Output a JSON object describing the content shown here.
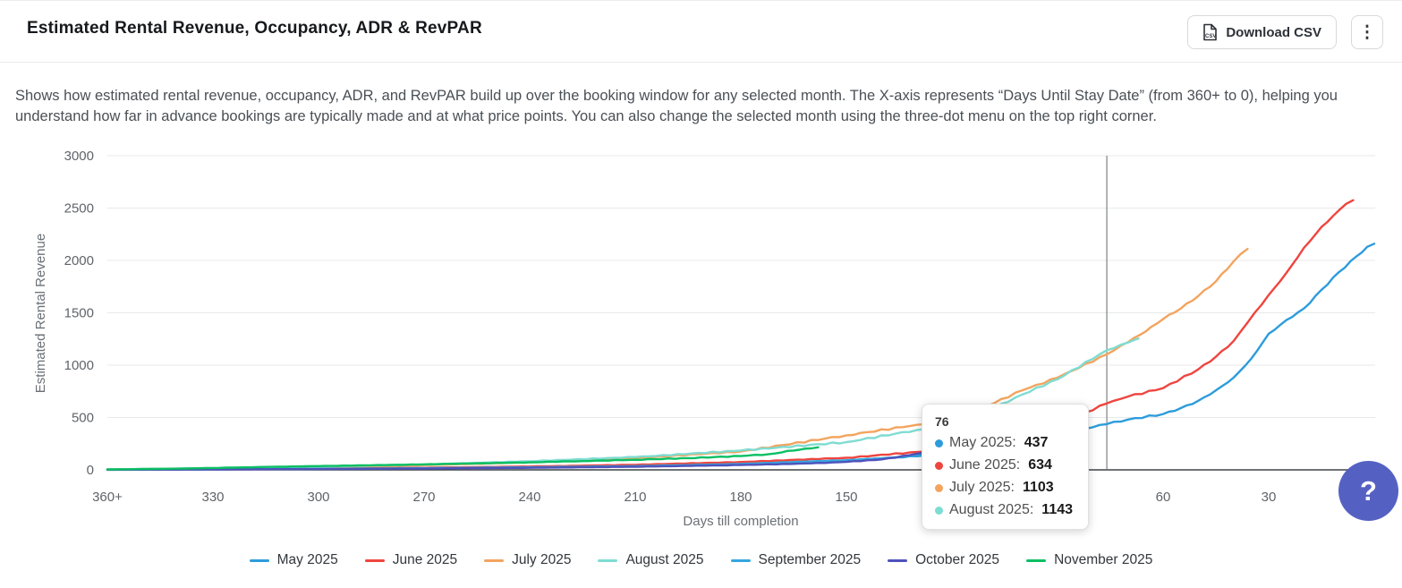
{
  "header": {
    "title": "Estimated Rental Revenue, Occupancy, ADR & RevPAR",
    "download_label": "Download CSV",
    "menu_icon": "⋮"
  },
  "description": "Shows how estimated rental revenue, occupancy, ADR, and RevPAR build up over the booking window for any selected month. The X-axis represents “Days Until Stay Date” (from 360+ to 0), helping you understand how far in advance bookings are typically made and at what price points. You can also change the selected month using the three-dot menu on the top right corner.",
  "tooltip": {
    "header": "76",
    "rows": [
      {
        "label": "May 2025",
        "value": "437",
        "color": "#2d9cdb"
      },
      {
        "label": "June 2025",
        "value": "634",
        "color": "#ee453f"
      },
      {
        "label": "July 2025",
        "value": "1103",
        "color": "#f3a45e"
      },
      {
        "label": "August 2025",
        "value": "1143",
        "color": "#7fdcd2"
      }
    ]
  },
  "help_button": {
    "label": "?",
    "color": "#5561c2"
  },
  "chart_data": {
    "type": "line",
    "xlabel": "Days till completion",
    "ylabel": "Estimated Rental Revenue",
    "x_ticks": [
      "360+",
      "330",
      "300",
      "270",
      "240",
      "210",
      "180",
      "150",
      "120",
      "90",
      "60",
      "30"
    ],
    "x_tick_days": [
      360,
      330,
      300,
      270,
      240,
      210,
      180,
      150,
      120,
      90,
      60,
      30
    ],
    "y_ticks": [
      0,
      500,
      1000,
      1500,
      2000,
      2500,
      3000
    ],
    "ylim": [
      0,
      3000
    ],
    "xlim_days": [
      360,
      0
    ],
    "grid": "horizontal",
    "legend_position": "bottom",
    "crosshair_day": 76,
    "series": [
      {
        "name": "May 2025",
        "color": "#2d9cdb",
        "points": [
          [
            360,
            3
          ],
          [
            330,
            8
          ],
          [
            300,
            14
          ],
          [
            270,
            20
          ],
          [
            240,
            28
          ],
          [
            210,
            40
          ],
          [
            180,
            58
          ],
          [
            150,
            90
          ],
          [
            130,
            130
          ],
          [
            120,
            160
          ],
          [
            110,
            210
          ],
          [
            100,
            280
          ],
          [
            90,
            340
          ],
          [
            76,
            437
          ],
          [
            70,
            480
          ],
          [
            60,
            533
          ],
          [
            55,
            590
          ],
          [
            50,
            660
          ],
          [
            45,
            760
          ],
          [
            40,
            880
          ],
          [
            35,
            1060
          ],
          [
            30,
            1300
          ],
          [
            25,
            1430
          ],
          [
            20,
            1540
          ],
          [
            15,
            1720
          ],
          [
            10,
            1890
          ],
          [
            5,
            2040
          ],
          [
            2,
            2130
          ],
          [
            0,
            2160
          ]
        ]
      },
      {
        "name": "June 2025",
        "color": "#ee453f",
        "points": [
          [
            360,
            2
          ],
          [
            330,
            6
          ],
          [
            300,
            12
          ],
          [
            270,
            20
          ],
          [
            240,
            32
          ],
          [
            210,
            48
          ],
          [
            180,
            75
          ],
          [
            150,
            115
          ],
          [
            130,
            170
          ],
          [
            120,
            205
          ],
          [
            110,
            260
          ],
          [
            100,
            350
          ],
          [
            90,
            430
          ],
          [
            76,
            634
          ],
          [
            70,
            700
          ],
          [
            60,
            780
          ],
          [
            50,
            960
          ],
          [
            45,
            1080
          ],
          [
            40,
            1230
          ],
          [
            34,
            1500
          ],
          [
            30,
            1670
          ],
          [
            25,
            1880
          ],
          [
            20,
            2120
          ],
          [
            15,
            2320
          ],
          [
            10,
            2480
          ],
          [
            8,
            2540
          ],
          [
            6,
            2575
          ]
        ]
      },
      {
        "name": "July 2025",
        "color": "#f3a45e",
        "points": [
          [
            360,
            5
          ],
          [
            330,
            12
          ],
          [
            300,
            25
          ],
          [
            270,
            45
          ],
          [
            240,
            72
          ],
          [
            210,
            112
          ],
          [
            180,
            175
          ],
          [
            150,
            330
          ],
          [
            130,
            430
          ],
          [
            120,
            500
          ],
          [
            110,
            610
          ],
          [
            100,
            760
          ],
          [
            90,
            880
          ],
          [
            76,
            1103
          ],
          [
            70,
            1220
          ],
          [
            65,
            1320
          ],
          [
            60,
            1440
          ],
          [
            55,
            1540
          ],
          [
            50,
            1660
          ],
          [
            45,
            1800
          ],
          [
            40,
            1990
          ],
          [
            38,
            2060
          ],
          [
            36,
            2110
          ]
        ]
      },
      {
        "name": "August 2025",
        "color": "#7fdcd2",
        "points": [
          [
            360,
            5
          ],
          [
            330,
            15
          ],
          [
            300,
            30
          ],
          [
            270,
            52
          ],
          [
            240,
            82
          ],
          [
            210,
            122
          ],
          [
            180,
            185
          ],
          [
            150,
            265
          ],
          [
            130,
            380
          ],
          [
            120,
            455
          ],
          [
            110,
            560
          ],
          [
            100,
            720
          ],
          [
            90,
            865
          ],
          [
            76,
            1143
          ],
          [
            72,
            1195
          ],
          [
            70,
            1215
          ],
          [
            68,
            1243
          ],
          [
            67,
            1255
          ]
        ]
      },
      {
        "name": "September 2025",
        "color": "#35a7e0",
        "points": [
          [
            360,
            2
          ],
          [
            330,
            5
          ],
          [
            300,
            10
          ],
          [
            270,
            16
          ],
          [
            240,
            25
          ],
          [
            210,
            36
          ],
          [
            180,
            56
          ],
          [
            150,
            92
          ],
          [
            140,
            110
          ],
          [
            130,
            140
          ],
          [
            120,
            175
          ],
          [
            110,
            225
          ],
          [
            100,
            295
          ],
          [
            97,
            325
          ]
        ]
      },
      {
        "name": "October 2025",
        "color": "#4e52ba",
        "points": [
          [
            360,
            1
          ],
          [
            330,
            4
          ],
          [
            300,
            8
          ],
          [
            270,
            13
          ],
          [
            240,
            20
          ],
          [
            210,
            30
          ],
          [
            180,
            46
          ],
          [
            160,
            62
          ],
          [
            150,
            76
          ],
          [
            140,
            100
          ],
          [
            132,
            140
          ],
          [
            128,
            165
          ]
        ]
      },
      {
        "name": "November 2025",
        "color": "#0bbf63",
        "points": [
          [
            360,
            4
          ],
          [
            340,
            12
          ],
          [
            330,
            18
          ],
          [
            315,
            28
          ],
          [
            300,
            36
          ],
          [
            285,
            44
          ],
          [
            270,
            52
          ],
          [
            255,
            62
          ],
          [
            240,
            72
          ],
          [
            225,
            84
          ],
          [
            210,
            97
          ],
          [
            195,
            112
          ],
          [
            180,
            132
          ],
          [
            172,
            150
          ],
          [
            165,
            185
          ],
          [
            160,
            205
          ],
          [
            158,
            215
          ]
        ]
      }
    ]
  }
}
